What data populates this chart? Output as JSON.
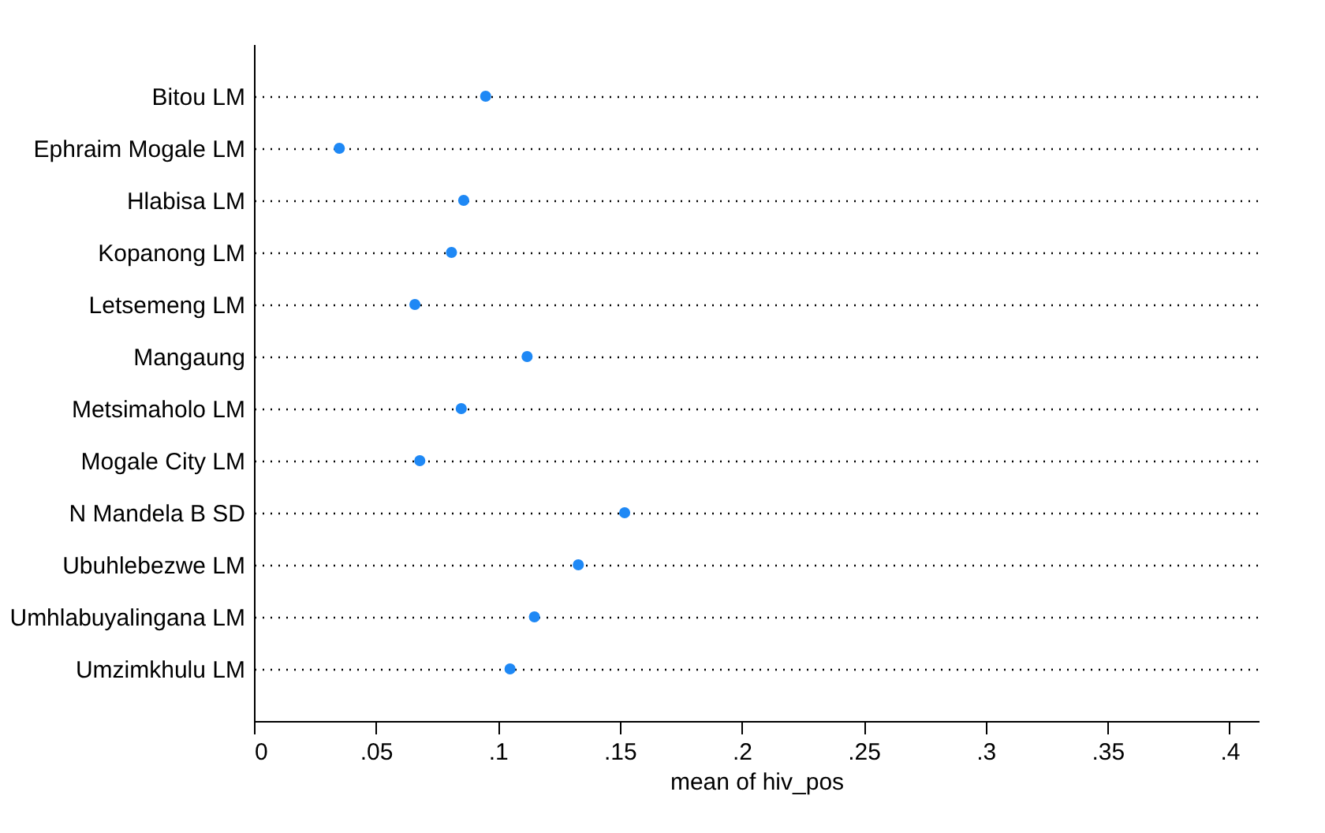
{
  "chart_data": {
    "type": "scatter",
    "orientation": "horizontal",
    "categories": [
      "Bitou LM",
      "Ephraim Mogale LM",
      "Hlabisa LM",
      "Kopanong LM",
      "Letsemeng LM",
      "Mangaung",
      "Metsimaholo LM",
      "Mogale City LM",
      "N Mandela B SD",
      "Ubuhlebezwe LM",
      "Umhlabuyalingana LM",
      "Umzimkhulu LM"
    ],
    "series": [
      {
        "color": "#1e88f5",
        "values": [
          0.095,
          0.035,
          0.086,
          0.081,
          0.066,
          0.112,
          0.085,
          0.068,
          0.152,
          0.133,
          0.115,
          0.105
        ]
      }
    ],
    "xlabel": "mean of hiv_pos",
    "xlim": [
      0,
      0.412
    ],
    "xticks": [
      0,
      {
        "value": 0.05,
        "label": ".05"
      },
      {
        "value": 0.1,
        "label": ".1"
      },
      {
        "value": 0.15,
        "label": ".15"
      },
      {
        "value": 0.2,
        "label": ".2"
      },
      {
        "value": 0.25,
        "label": ".25"
      },
      {
        "value": 0.3,
        "label": ".3"
      },
      {
        "value": 0.35,
        "label": ".35"
      },
      {
        "value": 0.4,
        "label": ".4"
      }
    ],
    "grid": "y",
    "line_style": "dotted",
    "marker": "circle",
    "legend": false
  }
}
